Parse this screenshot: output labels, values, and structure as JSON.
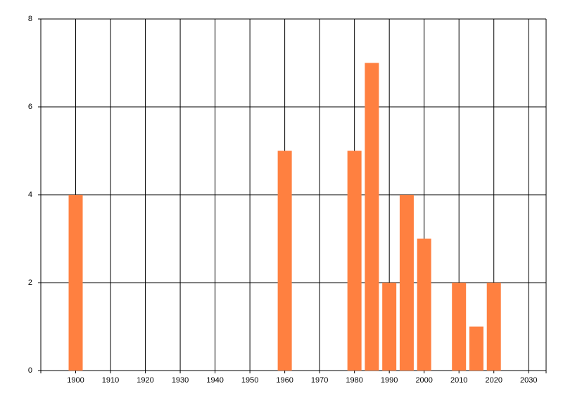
{
  "chart_data": {
    "type": "bar",
    "x": [
      1900,
      1960,
      1980,
      1985,
      1990,
      1995,
      2000,
      2010,
      2015,
      2020
    ],
    "values": [
      4,
      5,
      5,
      7,
      2,
      4,
      3,
      2,
      1,
      2
    ],
    "color": "#ff8040",
    "xlim": [
      1890,
      2035
    ],
    "xticks": [
      1900,
      1910,
      1920,
      1930,
      1940,
      1950,
      1960,
      1970,
      1980,
      1990,
      2000,
      2010,
      2020,
      2030
    ],
    "ylim": [
      0,
      8
    ],
    "yticks": [
      0,
      2,
      4,
      6,
      8
    ],
    "grid": true
  }
}
